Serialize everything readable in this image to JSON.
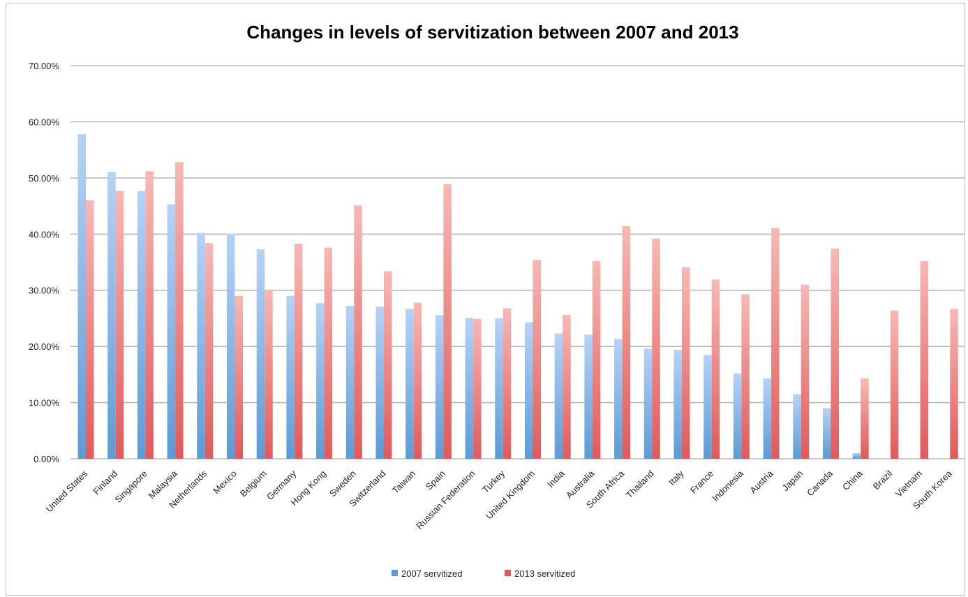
{
  "chart_data": {
    "type": "bar",
    "title": "Changes in levels of servitization between 2007 and 2013",
    "xlabel": "",
    "ylabel": "",
    "ylim": [
      0,
      0.7
    ],
    "y_ticks": [
      0,
      0.1,
      0.2,
      0.3,
      0.4,
      0.5,
      0.6,
      0.7
    ],
    "y_tick_labels": [
      "0.00%",
      "10.00%",
      "20.00%",
      "30.00%",
      "40.00%",
      "50.00%",
      "60.00%",
      "70.00%"
    ],
    "grid": true,
    "legend_position": "bottom",
    "categories": [
      "United States",
      "Finland",
      "Singapore",
      "Malaysia",
      "Netherlands",
      "Mexico",
      "Belgium",
      "Germany",
      "Hong Kong",
      "Sweden",
      "Switzerland",
      "Taiwan",
      "Spain",
      "Russian Federation",
      "Turkey",
      "United Kingdom",
      "India",
      "Australia",
      "South Africa",
      "Thailand",
      "Italy",
      "France",
      "Indonesia",
      "Austria",
      "Japan",
      "Canada",
      "China",
      "Brazil",
      "Vietnam",
      "South Korea"
    ],
    "series": [
      {
        "name": "2007 servitized",
        "color": "#5b9bd5",
        "values": [
          0.578,
          0.511,
          0.477,
          0.453,
          0.402,
          0.401,
          0.373,
          0.29,
          0.277,
          0.272,
          0.271,
          0.267,
          0.256,
          0.251,
          0.25,
          0.243,
          0.223,
          0.221,
          0.213,
          0.196,
          0.194,
          0.185,
          0.152,
          0.143,
          0.115,
          0.09,
          0.01,
          0,
          0,
          0
        ]
      },
      {
        "name": "2013 servitized",
        "color": "#e05a5a",
        "values": [
          0.46,
          0.477,
          0.512,
          0.528,
          0.384,
          0.29,
          0.3,
          0.383,
          0.376,
          0.451,
          0.334,
          0.278,
          0.489,
          0.249,
          0.268,
          0.354,
          0.256,
          0.352,
          0.414,
          0.392,
          0.341,
          0.319,
          0.293,
          0.411,
          0.31,
          0.374,
          0.143,
          0.264,
          0.352,
          0.267
        ]
      }
    ]
  }
}
